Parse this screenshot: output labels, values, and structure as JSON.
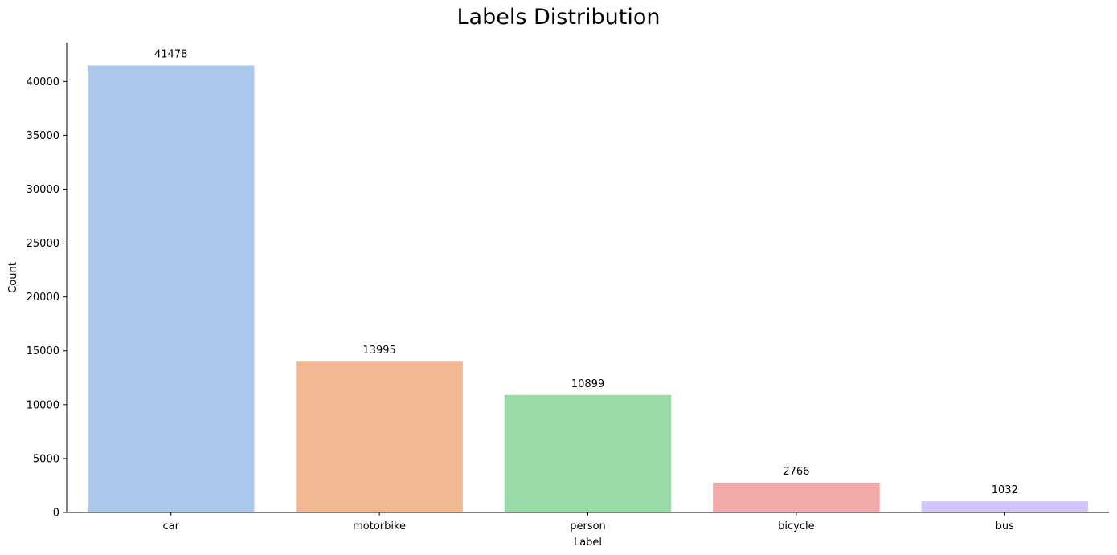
{
  "chart_data": {
    "type": "bar",
    "title": "Labels Distribution",
    "xlabel": "Label",
    "ylabel": "Count",
    "categories": [
      "car",
      "motorbike",
      "person",
      "bicycle",
      "bus"
    ],
    "values": [
      41478,
      13995,
      10899,
      2766,
      1032
    ],
    "data_labels": [
      "41478",
      "13995",
      "10899",
      "2766",
      "1032"
    ],
    "colors": [
      "#abc9ed",
      "#f1b893",
      "#9ad9a8",
      "#f2a9a7",
      "#d4c6fa"
    ],
    "ylim": [
      0,
      43600
    ],
    "yticks": [
      0,
      5000,
      10000,
      15000,
      20000,
      25000,
      30000,
      35000,
      40000
    ],
    "ytick_labels": [
      "0",
      "5000",
      "10000",
      "15000",
      "20000",
      "25000",
      "30000",
      "35000",
      "40000"
    ],
    "grid": false,
    "legend": "none"
  }
}
